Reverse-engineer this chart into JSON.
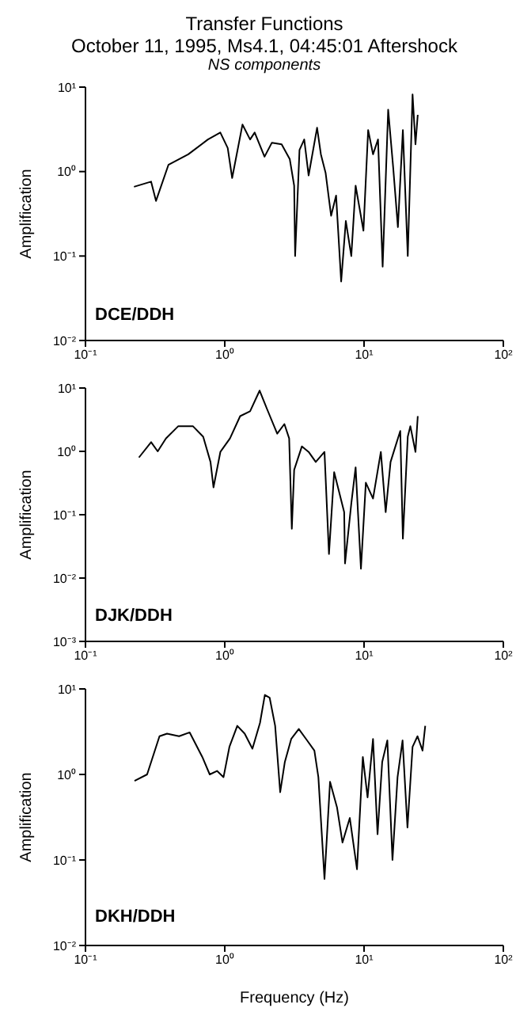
{
  "chart_data": [
    {
      "type": "line",
      "title": "Transfer Functions",
      "subtitle": "October 11, 1995, Ms4.1, 04:45:01 Aftershock",
      "annotations": [
        "NS components",
        "DCE/DDH"
      ],
      "ylabel": "Amplification",
      "log": "xy",
      "legend": false,
      "marker": "none",
      "line_style": "solid",
      "xlim": [
        0.1,
        100
      ],
      "xticks": [
        {
          "value": 0.1,
          "label": "10⁻¹"
        },
        {
          "value": 1,
          "label": "10⁰"
        },
        {
          "value": 10,
          "label": "10¹"
        },
        {
          "value": 100,
          "label": "10²"
        }
      ],
      "ylim": [
        0.01,
        10
      ],
      "yticks": [
        {
          "value": 0.01,
          "label": "10⁻²"
        },
        {
          "value": 0.1,
          "label": "10⁻¹"
        },
        {
          "value": 1,
          "label": "10⁰"
        },
        {
          "value": 10,
          "label": "10¹"
        }
      ],
      "series": [
        {
          "color": "#000000",
          "x": [
            0.223,
            0.296,
            0.321,
            0.394,
            0.547,
            0.757,
            0.929,
            1.05,
            1.13,
            1.34,
            1.52,
            1.64,
            1.93,
            2.18,
            2.56,
            2.93,
            3.15,
            3.2,
            3.44,
            3.72,
            4.0,
            4.6,
            4.9,
            5.3,
            5.8,
            6.3,
            6.85,
            7.4,
            8.1,
            8.7,
            9.9,
            10.7,
            11.6,
            12.6,
            13.6,
            14.9,
            16.2,
            17.5,
            19.0,
            20.6,
            22.3,
            23.4,
            24.3
          ],
          "values": [
            0.66,
            0.76,
            0.45,
            1.2,
            1.6,
            2.4,
            2.9,
            1.9,
            0.84,
            3.6,
            2.4,
            2.9,
            1.5,
            2.2,
            2.1,
            1.4,
            0.68,
            0.1,
            1.8,
            2.4,
            0.9,
            3.3,
            1.6,
            0.96,
            0.3,
            0.52,
            0.05,
            0.26,
            0.1,
            0.68,
            0.2,
            3.1,
            1.6,
            2.4,
            0.075,
            5.4,
            1.1,
            0.22,
            3.1,
            0.1,
            8.2,
            2.1,
            4.7
          ]
        }
      ]
    },
    {
      "type": "line",
      "annotations": [
        "DJK/DDH"
      ],
      "ylabel": "Amplification",
      "log": "xy",
      "legend": false,
      "marker": "none",
      "line_style": "solid",
      "xlim": [
        0.1,
        100
      ],
      "xticks": [
        {
          "value": 0.1,
          "label": "10⁻¹"
        },
        {
          "value": 1,
          "label": "10⁰"
        },
        {
          "value": 10,
          "label": "10¹"
        },
        {
          "value": 100,
          "label": "10²"
        }
      ],
      "ylim": [
        0.001,
        10
      ],
      "yticks": [
        {
          "value": 0.001,
          "label": "10⁻³"
        },
        {
          "value": 0.01,
          "label": "10⁻²"
        },
        {
          "value": 0.1,
          "label": "10⁻¹"
        },
        {
          "value": 1,
          "label": "10⁰"
        },
        {
          "value": 10,
          "label": "10¹"
        }
      ],
      "series": [
        {
          "color": "#000000",
          "x": [
            0.242,
            0.296,
            0.33,
            0.378,
            0.464,
            0.59,
            0.7,
            0.79,
            0.83,
            0.93,
            1.09,
            1.29,
            1.52,
            1.78,
            2.0,
            2.38,
            2.68,
            2.9,
            3.03,
            3.15,
            3.58,
            4.0,
            4.5,
            5.2,
            5.6,
            6.1,
            7.2,
            7.3,
            8.1,
            8.7,
            9.5,
            10.3,
            11.6,
            13.2,
            14.3,
            15.5,
            16.8,
            18.2,
            19.0,
            20.6,
            21.5,
            23.4,
            24.3
          ],
          "values": [
            0.8,
            1.4,
            1.0,
            1.6,
            2.5,
            2.5,
            1.7,
            0.68,
            0.27,
            0.98,
            1.6,
            3.6,
            4.3,
            9.1,
            4.8,
            1.9,
            2.7,
            1.6,
            0.06,
            0.51,
            1.2,
            0.98,
            0.68,
            0.98,
            0.024,
            0.47,
            0.11,
            0.017,
            0.15,
            0.56,
            0.014,
            0.32,
            0.18,
            0.98,
            0.11,
            0.68,
            1.2,
            2.1,
            0.042,
            1.7,
            2.5,
            0.98,
            3.6
          ]
        }
      ]
    },
    {
      "type": "line",
      "annotations": [
        "DKH/DDH"
      ],
      "xlabel": "Frequency (Hz)",
      "ylabel": "Amplification",
      "log": "xy",
      "legend": false,
      "marker": "none",
      "line_style": "solid",
      "xlim": [
        0.1,
        100
      ],
      "xticks": [
        {
          "value": 0.1,
          "label": "10⁻¹"
        },
        {
          "value": 1,
          "label": "10⁰"
        },
        {
          "value": 10,
          "label": "10¹"
        },
        {
          "value": 100,
          "label": "10²"
        }
      ],
      "ylim": [
        0.01,
        10
      ],
      "yticks": [
        {
          "value": 0.01,
          "label": "10⁻²"
        },
        {
          "value": 0.1,
          "label": "10⁻¹"
        },
        {
          "value": 1,
          "label": "10⁰"
        },
        {
          "value": 10,
          "label": "10¹"
        }
      ],
      "series": [
        {
          "color": "#000000",
          "x": [
            0.225,
            0.277,
            0.34,
            0.385,
            0.47,
            0.56,
            0.69,
            0.78,
            0.88,
            0.98,
            1.08,
            1.23,
            1.39,
            1.58,
            1.79,
            1.94,
            2.1,
            2.3,
            2.5,
            2.7,
            3.0,
            3.4,
            3.9,
            4.4,
            4.7,
            5.2,
            5.7,
            6.4,
            7.0,
            7.9,
            8.9,
            9.8,
            10.6,
            11.6,
            12.5,
            13.5,
            14.7,
            16.0,
            17.4,
            18.9,
            20.5,
            22.3,
            24.2,
            26.3,
            27.5
          ],
          "values": [
            0.84,
            1.0,
            2.8,
            3.0,
            2.8,
            3.1,
            1.6,
            1.0,
            1.1,
            0.93,
            2.1,
            3.7,
            3.0,
            2.0,
            4.0,
            8.5,
            7.9,
            3.7,
            0.62,
            1.4,
            2.6,
            3.4,
            2.5,
            1.9,
            0.93,
            0.06,
            0.82,
            0.41,
            0.16,
            0.31,
            0.078,
            1.6,
            0.54,
            2.6,
            0.2,
            1.4,
            2.5,
            0.1,
            0.93,
            2.5,
            0.24,
            2.1,
            2.8,
            1.9,
            3.7
          ]
        }
      ]
    }
  ]
}
